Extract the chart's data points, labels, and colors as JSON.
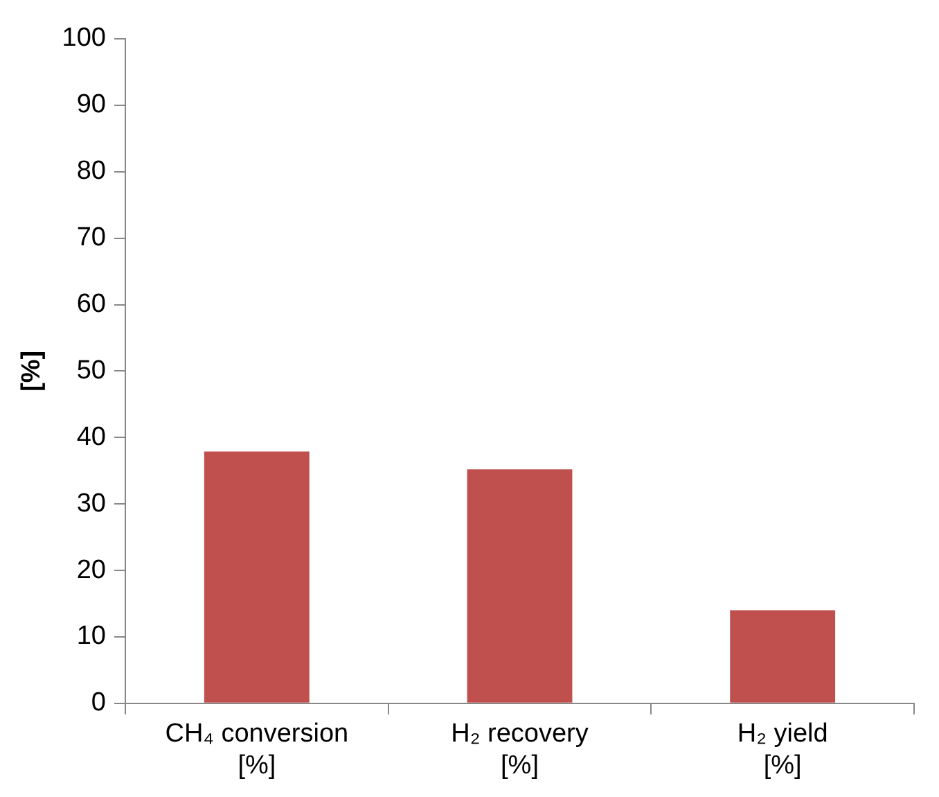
{
  "chart_data": {
    "type": "bar",
    "ylabel": "[%]",
    "categories": [
      "CH₄ conversion\n[%]",
      "H₂ recovery\n[%]",
      "H₂ yield\n[%]"
    ],
    "values": [
      37.9,
      35.2,
      14.0
    ],
    "color": "#c0504d",
    "ylim": [
      0,
      100
    ],
    "yticks": [
      0,
      10,
      20,
      30,
      40,
      50,
      60,
      70,
      80,
      90,
      100
    ],
    "grid": false,
    "legend": false
  }
}
